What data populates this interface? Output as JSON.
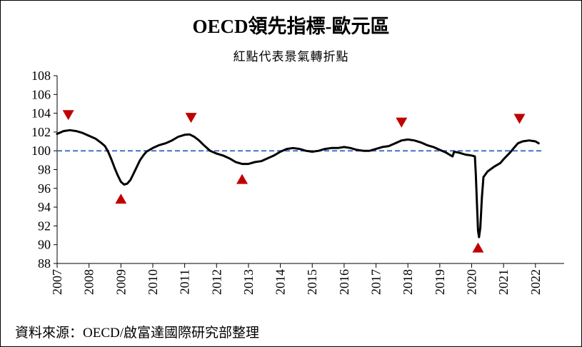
{
  "chart_data": {
    "type": "line",
    "title": "OECD領先指標-歐元區",
    "subtitle": "紅點代表景氣轉折點",
    "source": "資料來源：OECD/啟富達國際研究部整理",
    "xlabel": "",
    "ylabel": "",
    "xlim": [
      2007,
      2022.9
    ],
    "ylim": [
      88,
      108
    ],
    "y_ticks": [
      88,
      90,
      92,
      94,
      96,
      98,
      100,
      102,
      104,
      106,
      108
    ],
    "x_ticks": [
      2007,
      2008,
      2009,
      2010,
      2011,
      2012,
      2013,
      2014,
      2015,
      2016,
      2017,
      2018,
      2019,
      2020,
      2021,
      2022
    ],
    "reference_line": {
      "y": 100,
      "style": "dashed",
      "color": "#4472c4"
    },
    "series": [
      {
        "line_color": "#000000",
        "points": [
          [
            2007.0,
            101.8
          ],
          [
            2007.2,
            102.1
          ],
          [
            2007.4,
            102.2
          ],
          [
            2007.6,
            102.1
          ],
          [
            2007.8,
            101.9
          ],
          [
            2008.0,
            101.6
          ],
          [
            2008.2,
            101.3
          ],
          [
            2008.4,
            100.8
          ],
          [
            2008.5,
            100.5
          ],
          [
            2008.6,
            99.9
          ],
          [
            2008.7,
            99.1
          ],
          [
            2008.8,
            98.2
          ],
          [
            2008.9,
            97.4
          ],
          [
            2009.0,
            96.7
          ],
          [
            2009.1,
            96.4
          ],
          [
            2009.2,
            96.5
          ],
          [
            2009.3,
            96.9
          ],
          [
            2009.4,
            97.6
          ],
          [
            2009.5,
            98.3
          ],
          [
            2009.6,
            99.0
          ],
          [
            2009.7,
            99.5
          ],
          [
            2009.8,
            99.9
          ],
          [
            2010.0,
            100.3
          ],
          [
            2010.2,
            100.6
          ],
          [
            2010.4,
            100.8
          ],
          [
            2010.6,
            101.1
          ],
          [
            2010.8,
            101.5
          ],
          [
            2011.0,
            101.7
          ],
          [
            2011.15,
            101.75
          ],
          [
            2011.3,
            101.5
          ],
          [
            2011.45,
            101.1
          ],
          [
            2011.6,
            100.6
          ],
          [
            2011.8,
            100.0
          ],
          [
            2012.0,
            99.7
          ],
          [
            2012.2,
            99.5
          ],
          [
            2012.4,
            99.2
          ],
          [
            2012.6,
            98.8
          ],
          [
            2012.8,
            98.6
          ],
          [
            2013.0,
            98.6
          ],
          [
            2013.2,
            98.8
          ],
          [
            2013.4,
            98.9
          ],
          [
            2013.6,
            99.2
          ],
          [
            2013.8,
            99.5
          ],
          [
            2014.0,
            99.9
          ],
          [
            2014.2,
            100.2
          ],
          [
            2014.4,
            100.3
          ],
          [
            2014.6,
            100.2
          ],
          [
            2014.8,
            100.0
          ],
          [
            2015.0,
            99.9
          ],
          [
            2015.2,
            100.0
          ],
          [
            2015.4,
            100.2
          ],
          [
            2015.6,
            100.3
          ],
          [
            2015.8,
            100.3
          ],
          [
            2016.0,
            100.4
          ],
          [
            2016.2,
            100.3
          ],
          [
            2016.4,
            100.1
          ],
          [
            2016.6,
            100.0
          ],
          [
            2016.8,
            100.0
          ],
          [
            2017.0,
            100.2
          ],
          [
            2017.2,
            100.4
          ],
          [
            2017.4,
            100.5
          ],
          [
            2017.6,
            100.8
          ],
          [
            2017.8,
            101.1
          ],
          [
            2018.0,
            101.2
          ],
          [
            2018.2,
            101.1
          ],
          [
            2018.4,
            100.9
          ],
          [
            2018.6,
            100.6
          ],
          [
            2018.8,
            100.4
          ],
          [
            2019.0,
            100.1
          ],
          [
            2019.2,
            99.8
          ],
          [
            2019.3,
            99.6
          ],
          [
            2019.4,
            99.4
          ],
          [
            2019.45,
            99.9
          ],
          [
            2019.6,
            99.8
          ],
          [
            2019.8,
            99.6
          ],
          [
            2020.0,
            99.5
          ],
          [
            2020.1,
            99.4
          ],
          [
            2020.13,
            97.5
          ],
          [
            2020.17,
            94.0
          ],
          [
            2020.2,
            91.5
          ],
          [
            2020.23,
            90.8
          ],
          [
            2020.27,
            91.8
          ],
          [
            2020.32,
            95.0
          ],
          [
            2020.37,
            97.2
          ],
          [
            2020.5,
            97.8
          ],
          [
            2020.7,
            98.3
          ],
          [
            2020.9,
            98.7
          ],
          [
            2021.0,
            99.1
          ],
          [
            2021.2,
            99.8
          ],
          [
            2021.35,
            100.4
          ],
          [
            2021.45,
            100.8
          ],
          [
            2021.6,
            101.0
          ],
          [
            2021.8,
            101.1
          ],
          [
            2022.0,
            101.0
          ],
          [
            2022.1,
            100.8
          ]
        ]
      }
    ],
    "turning_points": [
      {
        "x": 2007.35,
        "y": 103.8,
        "kind": "peak",
        "color": "#c00000"
      },
      {
        "x": 2009.0,
        "y": 94.9,
        "kind": "trough",
        "color": "#c00000"
      },
      {
        "x": 2011.2,
        "y": 103.5,
        "kind": "peak",
        "color": "#c00000"
      },
      {
        "x": 2012.8,
        "y": 97.0,
        "kind": "trough",
        "color": "#c00000"
      },
      {
        "x": 2017.8,
        "y": 103.0,
        "kind": "peak",
        "color": "#c00000"
      },
      {
        "x": 2020.2,
        "y": 89.7,
        "kind": "trough",
        "color": "#c00000"
      },
      {
        "x": 2021.5,
        "y": 103.4,
        "kind": "peak",
        "color": "#c00000"
      }
    ]
  }
}
